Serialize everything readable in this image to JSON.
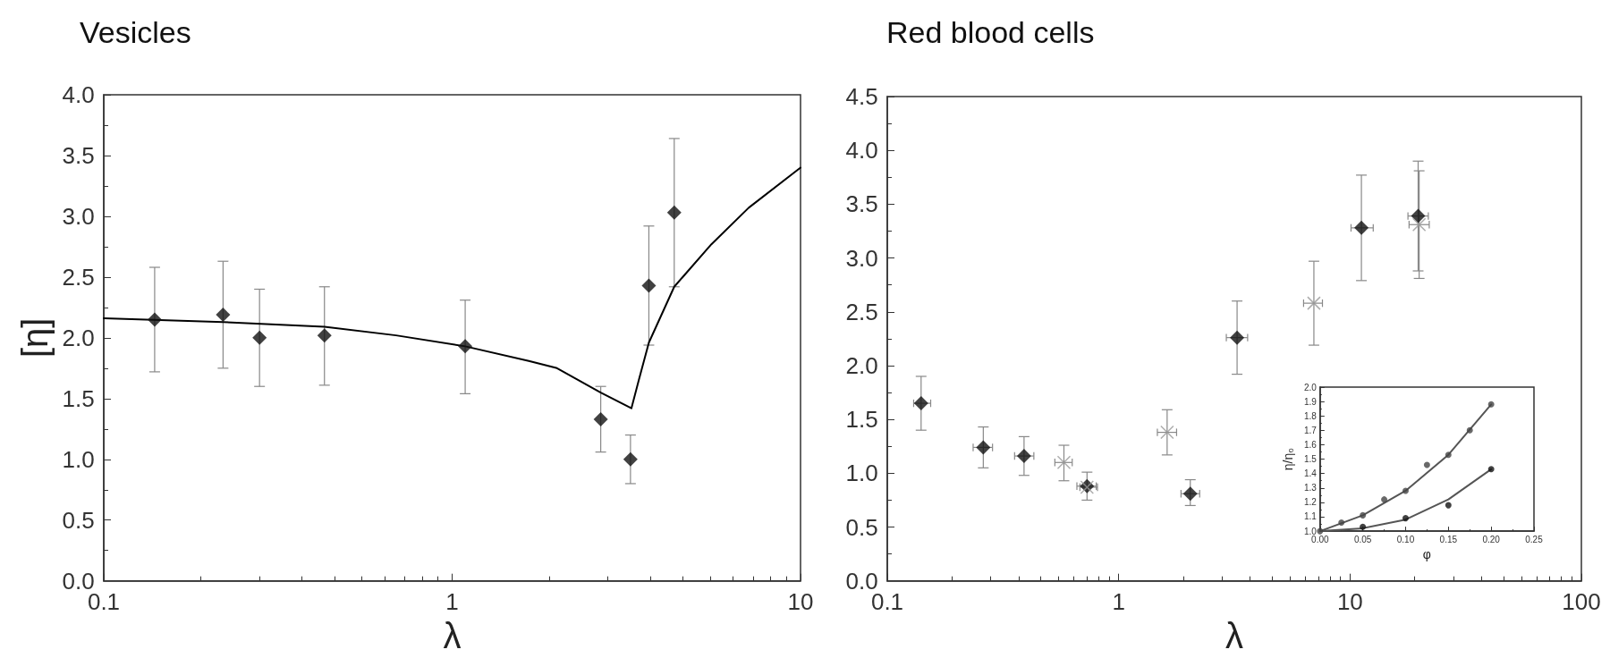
{
  "chart_data": [
    {
      "type": "scatter",
      "title": "Vesicles",
      "xlabel": "λ",
      "ylabel": "[η]",
      "log": "x",
      "grid": false,
      "xlim": [
        0.1,
        10
      ],
      "xticks": [
        0.1,
        1,
        10
      ],
      "ylim": [
        0,
        4
      ],
      "yticks": [
        {
          "value": 0,
          "label": "0.0"
        },
        0.5,
        {
          "value": 1,
          "label": "1.0"
        },
        1.5,
        {
          "value": 2,
          "label": "2.0"
        },
        2.5,
        {
          "value": 3,
          "label": "3.0"
        },
        3.5,
        {
          "value": 4,
          "label": "4.0"
        }
      ],
      "series": [
        {
          "type": "scatter",
          "color": "#111111",
          "marker": "diamond",
          "x": [
            0.14,
            0.22,
            0.28,
            0.43,
            1.09,
            2.67,
            3.25,
            3.67,
            4.34
          ],
          "values": [
            2.15,
            2.19,
            2.0,
            2.02,
            1.93,
            1.33,
            1.0,
            2.43,
            3.03
          ],
          "errors": [
            [
              1.72,
              2.58
            ],
            [
              1.75,
              2.63
            ],
            [
              1.6,
              2.4
            ],
            [
              1.61,
              2.42
            ],
            [
              1.54,
              2.31
            ],
            [
              1.06,
              1.6
            ],
            [
              0.8,
              1.2
            ],
            [
              1.94,
              2.92
            ],
            [
              2.42,
              3.64
            ]
          ]
        },
        {
          "type": "line",
          "color": "#000000",
          "marker": "none",
          "x": [
            0.1,
            0.22,
            0.43,
            0.69,
            1.09,
            1.66,
            2.0,
            2.67,
            3.27,
            3.44,
            3.67,
            4.34,
            5.55,
            7.1,
            10
          ],
          "values": [
            2.16,
            2.13,
            2.09,
            2.02,
            1.93,
            1.81,
            1.75,
            1.55,
            1.42,
            1.66,
            1.96,
            2.42,
            2.77,
            3.07,
            3.4
          ]
        }
      ]
    },
    {
      "type": "scatter",
      "title": "Red blood cells",
      "xlabel": "λ",
      "log": "x",
      "grid": false,
      "xlim": [
        0.1,
        100
      ],
      "xticks": [
        0.1,
        1,
        10,
        100
      ],
      "ylim": [
        0,
        4.5
      ],
      "yticks": [
        {
          "value": 0,
          "label": "0.0"
        },
        0.5,
        {
          "value": 1,
          "label": "1.0"
        },
        1.5,
        {
          "value": 2,
          "label": "2.0"
        },
        2.5,
        {
          "value": 3,
          "label": "3.0"
        },
        3.5,
        {
          "value": 4,
          "label": "4.0"
        },
        4.5
      ],
      "series": [
        {
          "type": "scatter",
          "color": "#111111",
          "marker": "diamond",
          "x": [
            0.14,
            0.26,
            0.39,
            0.73,
            2.04,
            3.25,
            11.2,
            19.7
          ],
          "values": [
            1.65,
            1.24,
            1.16,
            0.88,
            0.81,
            2.26,
            3.28,
            3.39
          ],
          "errors": [
            [
              1.4,
              1.9
            ],
            [
              1.05,
              1.43
            ],
            [
              0.98,
              1.34
            ],
            [
              0.75,
              1.01
            ],
            [
              0.7,
              0.94
            ],
            [
              1.92,
              2.6
            ],
            [
              2.79,
              3.77
            ],
            [
              2.88,
              3.9
            ]
          ],
          "xerrors": [
            [
              0.13,
              0.154
            ],
            [
              0.235,
              0.285
            ],
            [
              0.355,
              0.43
            ],
            [
              0.66,
              0.8
            ],
            [
              1.86,
              2.24
            ],
            [
              2.92,
              3.61
            ],
            [
              10.1,
              12.6
            ],
            [
              17.8,
              21.8
            ]
          ]
        },
        {
          "type": "scatter",
          "color": "#999999",
          "marker": "cross",
          "x": [
            0.58,
            0.73,
            1.62,
            6.98,
            19.9
          ],
          "values": [
            1.1,
            0.87,
            1.38,
            2.58,
            3.31
          ],
          "errors": [
            [
              0.93,
              1.26
            ],
            [
              0.75,
              1.01
            ],
            [
              1.17,
              1.59
            ],
            [
              2.19,
              2.97
            ],
            [
              2.81,
              3.81
            ]
          ],
          "xerrors": [
            [
              0.53,
              0.63
            ],
            [
              0.68,
              0.81
            ],
            [
              1.47,
              1.78
            ],
            [
              6.3,
              7.6
            ],
            [
              18,
              22
            ]
          ]
        }
      ]
    },
    {
      "type": "scatter",
      "xlabel": "φ",
      "ylabel": "η/η₀",
      "grid": false,
      "xlim": [
        0,
        0.25
      ],
      "xticks": [
        {
          "value": 0,
          "label": "0.00"
        },
        {
          "value": 0.05,
          "label": "0.05"
        },
        {
          "value": 0.1,
          "label": "0.10"
        },
        {
          "value": 0.15,
          "label": "0.15"
        },
        {
          "value": 0.2,
          "label": "0.20"
        },
        {
          "value": 0.25,
          "label": "0.25"
        }
      ],
      "ylim": [
        1,
        2
      ],
      "yticks": [
        {
          "value": 1,
          "label": "1.0"
        },
        1.1,
        1.2,
        1.3,
        1.4,
        1.5,
        1.6,
        1.7,
        1.8,
        1.9,
        {
          "value": 2,
          "label": "2.0"
        }
      ],
      "series": [
        {
          "type": "scatter",
          "color": "#444444",
          "marker": "circle",
          "x": [
            0,
            0.025,
            0.05,
            0.075,
            0.1,
            0.125,
            0.15,
            0.175,
            0.2
          ],
          "values": [
            1.0,
            1.06,
            1.11,
            1.22,
            1.28,
            1.46,
            1.53,
            1.7,
            1.88
          ]
        },
        {
          "type": "scatter",
          "color": "#111111",
          "marker": "circle",
          "x": [
            0.05,
            0.1,
            0.15,
            0.2
          ],
          "values": [
            1.03,
            1.09,
            1.18,
            1.43
          ]
        },
        {
          "type": "line",
          "color": "#555555",
          "marker": "none",
          "x": [
            0,
            0.05,
            0.1,
            0.15,
            0.2
          ],
          "values": [
            1.0,
            1.11,
            1.28,
            1.53,
            1.88
          ]
        },
        {
          "type": "line",
          "color": "#555555",
          "marker": "none",
          "x": [
            0,
            0.05,
            0.1,
            0.15,
            0.2
          ],
          "values": [
            1.0,
            1.02,
            1.08,
            1.22,
            1.43
          ]
        }
      ]
    }
  ]
}
